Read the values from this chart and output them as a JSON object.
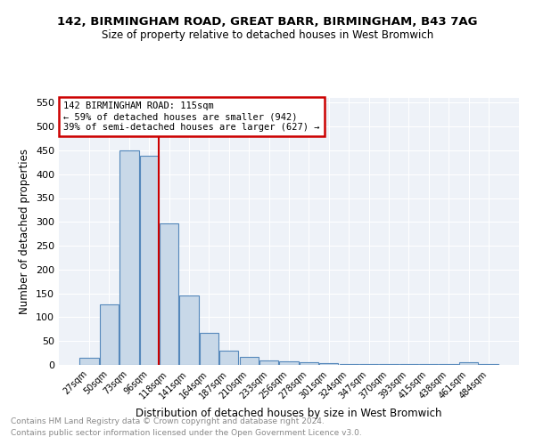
{
  "title1": "142, BIRMINGHAM ROAD, GREAT BARR, BIRMINGHAM, B43 7AG",
  "title2": "Size of property relative to detached houses in West Bromwich",
  "xlabel": "Distribution of detached houses by size in West Bromwich",
  "ylabel": "Number of detached properties",
  "bin_labels": [
    "27sqm",
    "50sqm",
    "73sqm",
    "96sqm",
    "118sqm",
    "141sqm",
    "164sqm",
    "187sqm",
    "210sqm",
    "233sqm",
    "256sqm",
    "278sqm",
    "301sqm",
    "324sqm",
    "347sqm",
    "370sqm",
    "393sqm",
    "415sqm",
    "438sqm",
    "461sqm",
    "484sqm"
  ],
  "bar_values": [
    15,
    127,
    450,
    438,
    297,
    145,
    68,
    29,
    16,
    9,
    7,
    5,
    3,
    2,
    2,
    2,
    2,
    1,
    1,
    6,
    1
  ],
  "bar_color": "#c8d8e8",
  "bar_edge_color": "#5588bb",
  "vline_color": "#cc0000",
  "annotation_text": "142 BIRMINGHAM ROAD: 115sqm\n← 59% of detached houses are smaller (942)\n39% of semi-detached houses are larger (627) →",
  "annotation_box_color": "#cc0000",
  "ylim": [
    0,
    560
  ],
  "yticks": [
    0,
    50,
    100,
    150,
    200,
    250,
    300,
    350,
    400,
    450,
    500,
    550
  ],
  "footer1": "Contains HM Land Registry data © Crown copyright and database right 2024.",
  "footer2": "Contains public sector information licensed under the Open Government Licence v3.0.",
  "bg_color": "#eef2f8"
}
